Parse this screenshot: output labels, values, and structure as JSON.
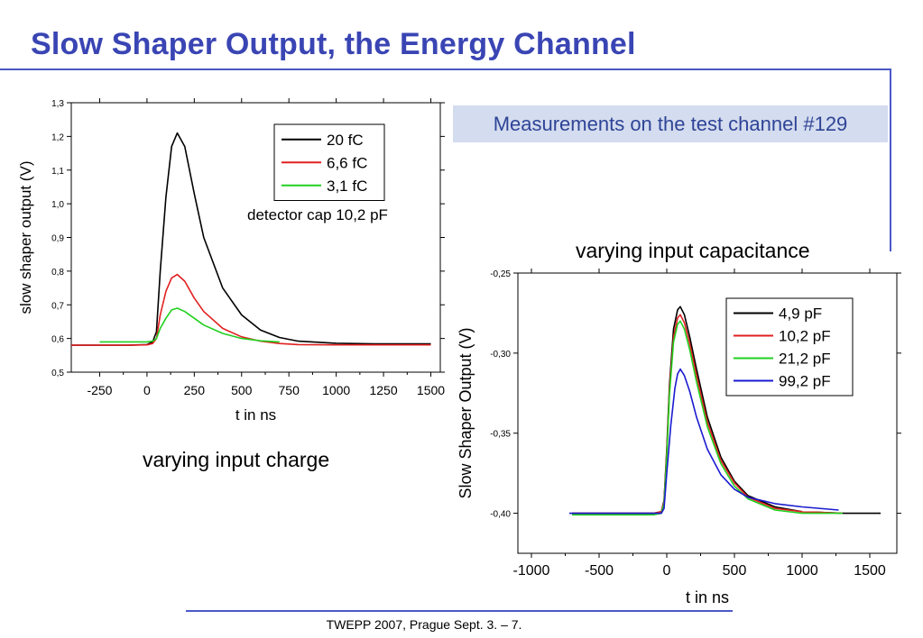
{
  "slide": {
    "title": "Slow Shaper Output, the Energy Channel",
    "note": "Measurements on the test channel #129",
    "footer": "TWEPP 2007, Prague Sept. 3. – 7.",
    "colors": {
      "title": "#3a45b4",
      "accent_line": "#4a58c8",
      "note_bg": "#d4dcef",
      "note_text": "#2e4496"
    }
  },
  "chart_data": [
    {
      "type": "line",
      "caption": "varying input charge",
      "xlabel": "t in ns",
      "ylabel": "slow shaper output (V)",
      "xlim": [
        -400,
        1550
      ],
      "ylim": [
        0.5,
        1.3
      ],
      "xticks": [
        -250,
        0,
        250,
        500,
        750,
        1000,
        1250,
        1500
      ],
      "xtick_labels": [
        "-250",
        "0",
        "250",
        "500",
        "750",
        "1000",
        "1250",
        "1500"
      ],
      "yticks": [
        0.5,
        0.6,
        0.7,
        0.8,
        0.9,
        1.0,
        1.1,
        1.2,
        1.3
      ],
      "ytick_labels": [
        "0,5",
        "0,6",
        "0,7",
        "0,8",
        "0,9",
        "1,0",
        "1,1",
        "1,2",
        "1,3"
      ],
      "legend_position": "top-right",
      "annotation": "detector cap 10,2 pF",
      "series": [
        {
          "name": "20 fC",
          "color": "#000000",
          "x": [
            -400,
            -100,
            0,
            30,
            50,
            70,
            100,
            130,
            160,
            200,
            250,
            300,
            400,
            500,
            600,
            700,
            800,
            1000,
            1200,
            1500
          ],
          "y": [
            0.58,
            0.58,
            0.582,
            0.59,
            0.62,
            0.8,
            1.02,
            1.17,
            1.21,
            1.17,
            1.03,
            0.9,
            0.75,
            0.67,
            0.625,
            0.603,
            0.592,
            0.586,
            0.584,
            0.584
          ]
        },
        {
          "name": "6,6 fC",
          "color": "#e02020",
          "x": [
            -400,
            -100,
            0,
            30,
            50,
            70,
            100,
            130,
            160,
            200,
            250,
            300,
            400,
            500,
            600,
            700,
            800,
            1000,
            1200,
            1500
          ],
          "y": [
            0.58,
            0.58,
            0.581,
            0.585,
            0.6,
            0.67,
            0.74,
            0.78,
            0.79,
            0.77,
            0.72,
            0.68,
            0.63,
            0.605,
            0.592,
            0.585,
            0.582,
            0.581,
            0.581,
            0.581
          ]
        },
        {
          "name": "3,1 fC",
          "color": "#20d020",
          "x": [
            -250,
            -100,
            0,
            30,
            50,
            70,
            100,
            130,
            160,
            200,
            250,
            300,
            400,
            500,
            600,
            700
          ],
          "y": [
            0.59,
            0.59,
            0.59,
            0.592,
            0.6,
            0.63,
            0.66,
            0.685,
            0.69,
            0.68,
            0.66,
            0.64,
            0.615,
            0.6,
            0.593,
            0.59
          ]
        }
      ]
    },
    {
      "type": "line",
      "caption": "varying input capacitance",
      "xlabel": "t in ns",
      "ylabel": "Slow Shaper Output (V)",
      "xlim": [
        -1100,
        1700
      ],
      "ylim": [
        -0.425,
        -0.25
      ],
      "xticks": [
        -1000,
        -500,
        0,
        500,
        1000,
        1500
      ],
      "xtick_labels": [
        "-1000",
        "-500",
        "0",
        "500",
        "1000",
        "1500"
      ],
      "yticks": [
        -0.25,
        -0.3,
        -0.35,
        -0.4
      ],
      "ytick_labels": [
        "-0,25",
        "-0,30",
        "-0,35",
        "-0,40"
      ],
      "legend_position": "top-right",
      "series": [
        {
          "name": "4,9 pF",
          "color": "#000000",
          "x": [
            -700,
            -100,
            -40,
            -20,
            0,
            20,
            50,
            80,
            100,
            130,
            170,
            220,
            300,
            400,
            500,
            600,
            800,
            1000,
            1300,
            1580
          ],
          "y": [
            -0.4,
            -0.4,
            -0.399,
            -0.392,
            -0.36,
            -0.32,
            -0.285,
            -0.273,
            -0.271,
            -0.276,
            -0.29,
            -0.31,
            -0.34,
            -0.365,
            -0.38,
            -0.389,
            -0.396,
            -0.399,
            -0.4,
            -0.4
          ]
        },
        {
          "name": "10,2 pF",
          "color": "#e02020",
          "x": [
            -700,
            -100,
            -40,
            -20,
            0,
            20,
            50,
            80,
            100,
            130,
            170,
            220,
            300,
            400,
            500,
            600,
            800,
            1000,
            1300
          ],
          "y": [
            -0.4,
            -0.4,
            -0.399,
            -0.393,
            -0.362,
            -0.323,
            -0.29,
            -0.278,
            -0.276,
            -0.281,
            -0.294,
            -0.314,
            -0.343,
            -0.367,
            -0.381,
            -0.39,
            -0.397,
            -0.399,
            -0.4
          ]
        },
        {
          "name": "21,2 pF",
          "color": "#20d020",
          "x": [
            -700,
            -100,
            -40,
            -20,
            0,
            20,
            50,
            80,
            100,
            130,
            170,
            220,
            300,
            400,
            500,
            600,
            800,
            1000,
            1300
          ],
          "y": [
            -0.401,
            -0.401,
            -0.4,
            -0.394,
            -0.365,
            -0.326,
            -0.293,
            -0.282,
            -0.28,
            -0.285,
            -0.298,
            -0.318,
            -0.346,
            -0.369,
            -0.383,
            -0.391,
            -0.398,
            -0.4,
            -0.4
          ]
        },
        {
          "name": "99,2 pF",
          "color": "#1a1ad0",
          "x": [
            -720,
            -100,
            -40,
            -20,
            0,
            30,
            60,
            80,
            100,
            130,
            170,
            220,
            300,
            400,
            500,
            600,
            800,
            1000,
            1270
          ],
          "y": [
            -0.4,
            -0.4,
            -0.4,
            -0.397,
            -0.375,
            -0.345,
            -0.322,
            -0.313,
            -0.31,
            -0.314,
            -0.324,
            -0.34,
            -0.36,
            -0.376,
            -0.385,
            -0.39,
            -0.394,
            -0.396,
            -0.398
          ]
        }
      ]
    }
  ]
}
